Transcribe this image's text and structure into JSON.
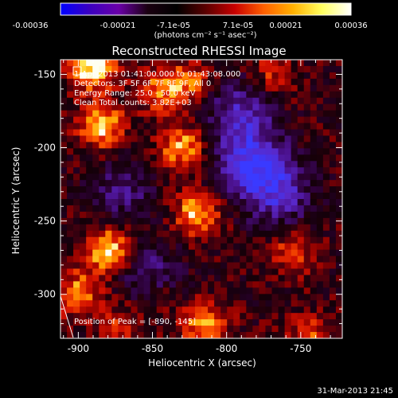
{
  "chart_data": {
    "type": "heatmap",
    "title": "Reconstructed RHESSI Image",
    "xlabel": "Heliocentric X (arcsec)",
    "ylabel": "Heliocentric Y (arcsec)",
    "colorbar": {
      "min": -0.00036,
      "max": 0.00036,
      "ticks": [
        "-0.00036",
        "-0.00021",
        "-7.1e-05",
        "7.1e-05",
        "0.00021",
        "0.00036"
      ],
      "units_label": "(photons cm⁻² s⁻¹ asec⁻²)",
      "colormap": [
        "#0000ff",
        "#3b00c0",
        "#6a00a8",
        "#1a0010",
        "#000000",
        "#5a0000",
        "#c80000",
        "#ff6000",
        "#ffb000",
        "#ffff60",
        "#ffffff"
      ]
    },
    "x_ticks": [
      -900,
      -850,
      -800,
      -750
    ],
    "y_ticks": [
      -150,
      -200,
      -250,
      -300
    ],
    "xlim": [
      -912,
      -722
    ],
    "ylim": [
      -330,
      -140
    ],
    "annotations": [
      "1-Apr-2013 01:41:00.000 to 01:43:08.000",
      "Detectors: 3F 5F 6F 7F 8F 9F, All 0",
      "Energy Range: 25.0 - 50.0 keV",
      "Clean    Total counts: 3.82E+03"
    ],
    "peak_label": "Position of Peak = [-890, -145]",
    "bright_regions": [
      {
        "x": -890,
        "y": -145,
        "intensity": 1.0
      },
      {
        "x": -885,
        "y": -185,
        "intensity": 0.85
      },
      {
        "x": -880,
        "y": -270,
        "intensity": 0.95
      },
      {
        "x": -900,
        "y": -300,
        "intensity": 0.7
      },
      {
        "x": -845,
        "y": -160,
        "intensity": 0.6
      },
      {
        "x": -830,
        "y": -200,
        "intensity": 0.75
      },
      {
        "x": -820,
        "y": -245,
        "intensity": 0.8
      },
      {
        "x": -815,
        "y": -320,
        "intensity": 0.75
      },
      {
        "x": -825,
        "y": -155,
        "intensity": 0.55
      },
      {
        "x": -770,
        "y": -150,
        "intensity": 0.45
      },
      {
        "x": -755,
        "y": -270,
        "intensity": 0.5
      },
      {
        "x": -745,
        "y": -330,
        "intensity": 0.5
      },
      {
        "x": -870,
        "y": -320,
        "intensity": 0.45
      },
      {
        "x": -845,
        "y": -300,
        "intensity": 0.4
      }
    ],
    "dim_regions": [
      {
        "x": -785,
        "y": -210,
        "intensity": -0.9
      },
      {
        "x": -765,
        "y": -230,
        "intensity": -0.75
      },
      {
        "x": -850,
        "y": -290,
        "intensity": -0.6
      },
      {
        "x": -790,
        "y": -175,
        "intensity": -0.65
      },
      {
        "x": -870,
        "y": -230,
        "intensity": -0.45
      }
    ]
  },
  "footer": {
    "date": "31-Mar-2013 21:45"
  }
}
